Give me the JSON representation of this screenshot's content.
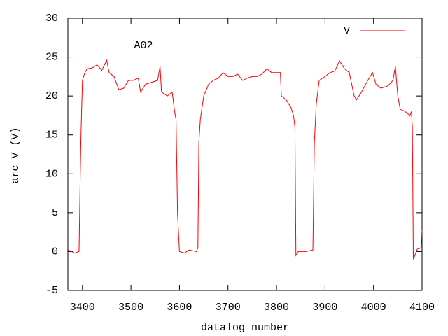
{
  "chart_data": {
    "type": "line",
    "annotation": "A02",
    "xlabel": "datalog number",
    "ylabel": "arc V (V)",
    "legend": "top right",
    "grid": false,
    "xlim": [
      3370,
      4100
    ],
    "ylim": [
      -5,
      30
    ],
    "xticks": [
      3400,
      3500,
      3600,
      3700,
      3800,
      3900,
      4000,
      4100
    ],
    "yticks": [
      -5,
      0,
      5,
      10,
      15,
      20,
      25,
      30
    ],
    "x": [
      3370,
      3385,
      3393,
      3395,
      3397,
      3400,
      3405,
      3410,
      3420,
      3430,
      3440,
      3450,
      3455,
      3465,
      3475,
      3485,
      3495,
      3505,
      3515,
      3520,
      3530,
      3545,
      3555,
      3560,
      3563,
      3575,
      3585,
      3590,
      3593,
      3596,
      3600,
      3610,
      3620,
      3635,
      3638,
      3640,
      3643,
      3650,
      3660,
      3670,
      3680,
      3690,
      3700,
      3710,
      3720,
      3730,
      3740,
      3750,
      3760,
      3770,
      3780,
      3790,
      3800,
      3808,
      3810,
      3820,
      3830,
      3835,
      3838,
      3840,
      3845,
      3860,
      3875,
      3878,
      3882,
      3888,
      3900,
      3910,
      3920,
      3930,
      3940,
      3950,
      3960,
      3965,
      3975,
      3990,
      3998,
      4005,
      4015,
      4030,
      4040,
      4045,
      4050,
      4055,
      4065,
      4075,
      4078,
      4080,
      4082,
      4090,
      4098,
      4100
    ],
    "series": [
      {
        "name": "V",
        "color": "#ff0000",
        "values": [
          0.2,
          -0.2,
          0,
          8,
          15,
          22,
          23,
          23.5,
          23.6,
          24,
          23.3,
          24.6,
          23,
          22.5,
          20.8,
          21,
          22,
          22,
          22.3,
          20.5,
          21.5,
          21.8,
          22,
          23.8,
          20.5,
          20,
          20.5,
          18,
          17,
          5,
          0,
          -0.2,
          0.2,
          0,
          0.5,
          14,
          17,
          20,
          21.5,
          22,
          22.3,
          23,
          22.5,
          22.5,
          22.8,
          22,
          22.3,
          22.5,
          22.5,
          22.8,
          23.5,
          23,
          23,
          23,
          20,
          19.5,
          18.5,
          17.5,
          16,
          -0.5,
          0,
          0,
          0.2,
          14,
          19,
          22,
          22.5,
          23,
          23.2,
          24.5,
          23.5,
          23,
          20,
          19.5,
          20.5,
          22.2,
          23,
          21.5,
          21,
          21.3,
          22,
          23.8,
          20,
          18.3,
          18,
          17.5,
          18,
          16,
          -1,
          0.3,
          0.5,
          2.8
        ]
      }
    ]
  }
}
